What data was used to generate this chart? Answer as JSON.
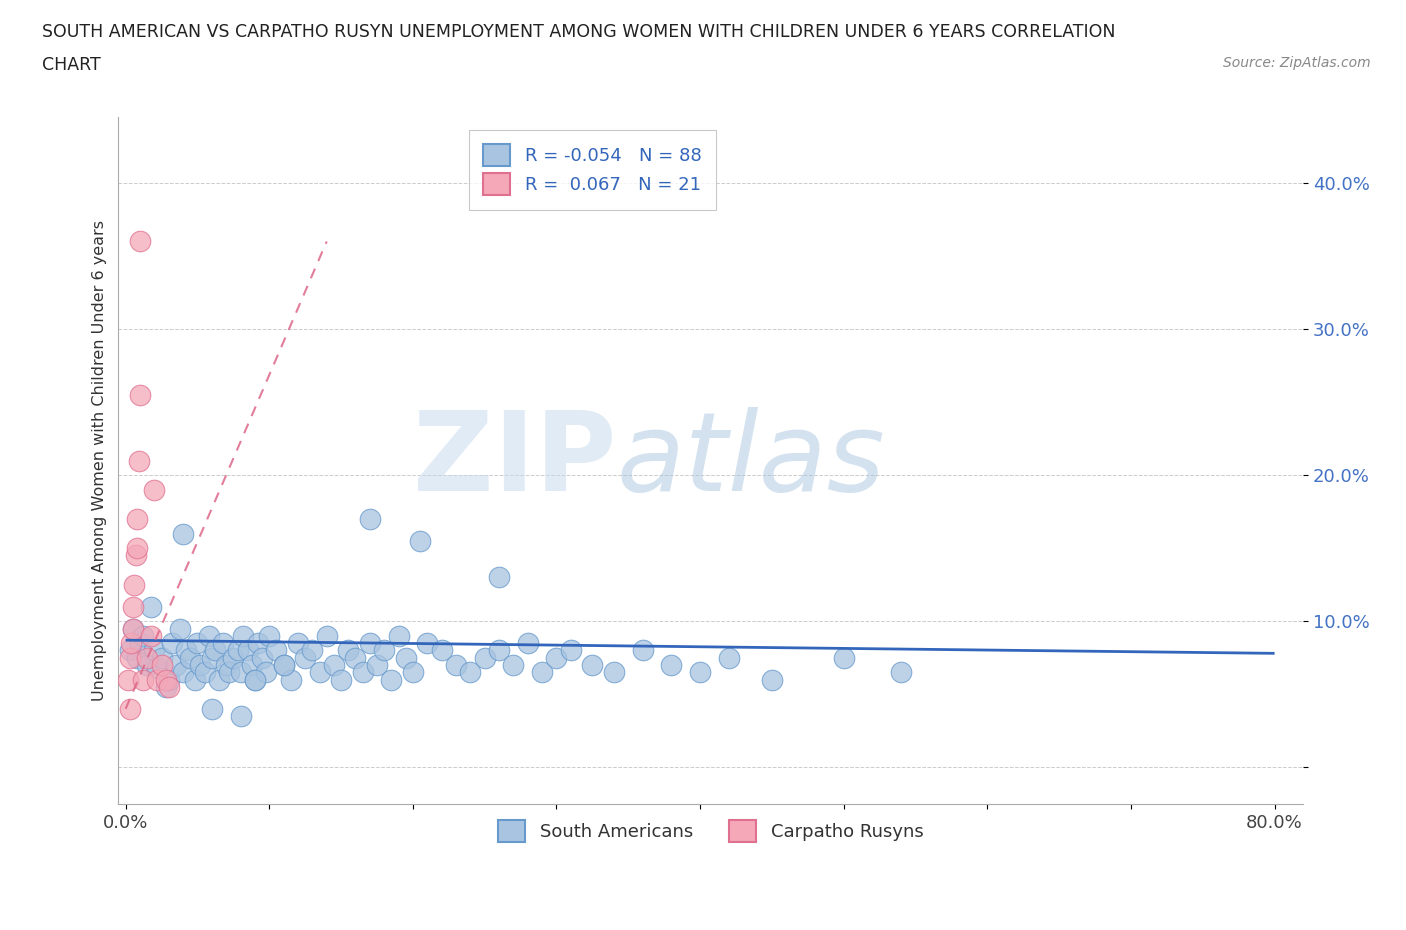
{
  "title_line1": "SOUTH AMERICAN VS CARPATHO RUSYN UNEMPLOYMENT AMONG WOMEN WITH CHILDREN UNDER 6 YEARS CORRELATION",
  "title_line2": "CHART",
  "source_text": "Source: ZipAtlas.com",
  "ylabel": "Unemployment Among Women with Children Under 6 years",
  "xlim": [
    -0.005,
    0.82
  ],
  "ylim": [
    -0.025,
    0.445
  ],
  "xticks": [
    0.0,
    0.1,
    0.2,
    0.3,
    0.4,
    0.5,
    0.6,
    0.7,
    0.8
  ],
  "xticklabels": [
    "0.0%",
    "",
    "",
    "",
    "",
    "",
    "",
    "",
    "80.0%"
  ],
  "yticks": [
    0.0,
    0.1,
    0.2,
    0.3,
    0.4
  ],
  "yticklabels": [
    "",
    "10.0%",
    "20.0%",
    "30.0%",
    "40.0%"
  ],
  "blue_R": "-0.054",
  "blue_N": "88",
  "pink_R": "0.067",
  "pink_N": "21",
  "blue_color": "#a8c4e0",
  "pink_color": "#f4a8b8",
  "blue_edge": "#6699cc",
  "pink_edge": "#e07090",
  "trend_blue_color": "#3366bb",
  "trend_pink_color": "#dd6688",
  "watermark_zip": "ZIP",
  "watermark_atlas": "atlas",
  "legend_label1": "South Americans",
  "legend_label2": "Carpatho Rusyns",
  "blue_scatter_x": [
    0.003,
    0.005,
    0.008,
    0.01,
    0.012,
    0.015,
    0.018,
    0.02,
    0.022,
    0.025,
    0.028,
    0.03,
    0.032,
    0.035,
    0.038,
    0.04,
    0.042,
    0.045,
    0.048,
    0.05,
    0.052,
    0.055,
    0.058,
    0.06,
    0.062,
    0.065,
    0.068,
    0.07,
    0.072,
    0.075,
    0.078,
    0.08,
    0.082,
    0.085,
    0.088,
    0.09,
    0.092,
    0.095,
    0.098,
    0.1,
    0.105,
    0.11,
    0.115,
    0.12,
    0.125,
    0.13,
    0.135,
    0.14,
    0.145,
    0.15,
    0.155,
    0.16,
    0.165,
    0.17,
    0.175,
    0.18,
    0.185,
    0.19,
    0.195,
    0.2,
    0.205,
    0.21,
    0.22,
    0.23,
    0.24,
    0.25,
    0.26,
    0.27,
    0.28,
    0.29,
    0.3,
    0.31,
    0.325,
    0.34,
    0.36,
    0.38,
    0.4,
    0.42,
    0.45,
    0.5,
    0.54,
    0.26,
    0.17,
    0.04,
    0.09,
    0.11,
    0.06,
    0.08
  ],
  "blue_scatter_y": [
    0.08,
    0.095,
    0.075,
    0.085,
    0.09,
    0.07,
    0.11,
    0.08,
    0.068,
    0.075,
    0.055,
    0.06,
    0.085,
    0.07,
    0.095,
    0.065,
    0.08,
    0.075,
    0.06,
    0.085,
    0.07,
    0.065,
    0.09,
    0.075,
    0.08,
    0.06,
    0.085,
    0.07,
    0.065,
    0.075,
    0.08,
    0.065,
    0.09,
    0.08,
    0.07,
    0.06,
    0.085,
    0.075,
    0.065,
    0.09,
    0.08,
    0.07,
    0.06,
    0.085,
    0.075,
    0.08,
    0.065,
    0.09,
    0.07,
    0.06,
    0.08,
    0.075,
    0.065,
    0.085,
    0.07,
    0.08,
    0.06,
    0.09,
    0.075,
    0.065,
    0.155,
    0.085,
    0.08,
    0.07,
    0.065,
    0.075,
    0.08,
    0.07,
    0.085,
    0.065,
    0.075,
    0.08,
    0.07,
    0.065,
    0.08,
    0.07,
    0.065,
    0.075,
    0.06,
    0.075,
    0.065,
    0.13,
    0.17,
    0.16,
    0.06,
    0.07,
    0.04,
    0.035
  ],
  "pink_scatter_x": [
    0.002,
    0.003,
    0.004,
    0.005,
    0.006,
    0.007,
    0.008,
    0.009,
    0.01,
    0.01,
    0.012,
    0.015,
    0.018,
    0.02,
    0.022,
    0.025,
    0.028,
    0.03,
    0.005,
    0.008,
    0.003
  ],
  "pink_scatter_y": [
    0.06,
    0.075,
    0.085,
    0.095,
    0.125,
    0.145,
    0.17,
    0.21,
    0.255,
    0.36,
    0.06,
    0.075,
    0.09,
    0.19,
    0.06,
    0.07,
    0.06,
    0.055,
    0.11,
    0.15,
    0.04
  ]
}
